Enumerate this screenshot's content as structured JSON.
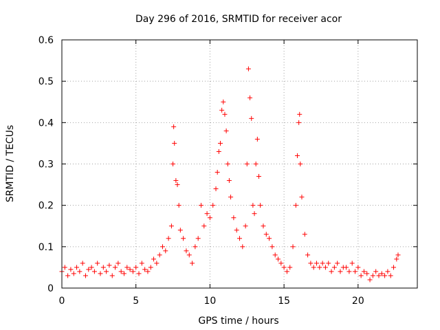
{
  "chart_data": {
    "type": "scatter",
    "title": "Day 296 of 2016, SRMTID for receiver acor",
    "xlabel": "GPS time / hours",
    "ylabel": "SRMTID / TECUs",
    "xlim": [
      0,
      24
    ],
    "ylim": [
      0,
      0.6
    ],
    "xticks": [
      "0",
      "5",
      "10",
      "15",
      "20"
    ],
    "yticks": [
      "0",
      "0.1",
      "0.2",
      "0.3",
      "0.4",
      "0.5",
      "0.6"
    ],
    "grid": true,
    "marker": "+",
    "marker_color": "#ff0000",
    "series": [
      {
        "name": "SRMTID",
        "points": [
          [
            0.0,
            0.04
          ],
          [
            0.2,
            0.05
          ],
          [
            0.4,
            0.03
          ],
          [
            0.6,
            0.045
          ],
          [
            0.8,
            0.035
          ],
          [
            1.0,
            0.05
          ],
          [
            1.2,
            0.04
          ],
          [
            1.4,
            0.06
          ],
          [
            1.6,
            0.03
          ],
          [
            1.8,
            0.045
          ],
          [
            2.0,
            0.05
          ],
          [
            2.2,
            0.04
          ],
          [
            2.4,
            0.06
          ],
          [
            2.6,
            0.035
          ],
          [
            2.8,
            0.05
          ],
          [
            3.0,
            0.04
          ],
          [
            3.2,
            0.055
          ],
          [
            3.4,
            0.03
          ],
          [
            3.6,
            0.05
          ],
          [
            3.8,
            0.06
          ],
          [
            4.0,
            0.04
          ],
          [
            4.2,
            0.035
          ],
          [
            4.4,
            0.05
          ],
          [
            4.6,
            0.045
          ],
          [
            4.8,
            0.04
          ],
          [
            5.0,
            0.05
          ],
          [
            5.2,
            0.035
          ],
          [
            5.4,
            0.06
          ],
          [
            5.6,
            0.045
          ],
          [
            5.8,
            0.04
          ],
          [
            6.0,
            0.05
          ],
          [
            6.2,
            0.07
          ],
          [
            6.4,
            0.06
          ],
          [
            6.6,
            0.08
          ],
          [
            6.8,
            0.1
          ],
          [
            7.0,
            0.09
          ],
          [
            7.2,
            0.12
          ],
          [
            7.4,
            0.15
          ],
          [
            7.5,
            0.3
          ],
          [
            7.55,
            0.39
          ],
          [
            7.6,
            0.35
          ],
          [
            7.7,
            0.26
          ],
          [
            7.8,
            0.25
          ],
          [
            7.9,
            0.2
          ],
          [
            8.0,
            0.14
          ],
          [
            8.2,
            0.12
          ],
          [
            8.4,
            0.09
          ],
          [
            8.6,
            0.08
          ],
          [
            8.8,
            0.06
          ],
          [
            9.0,
            0.1
          ],
          [
            9.2,
            0.12
          ],
          [
            9.4,
            0.2
          ],
          [
            9.6,
            0.15
          ],
          [
            9.8,
            0.18
          ],
          [
            10.0,
            0.17
          ],
          [
            10.2,
            0.2
          ],
          [
            10.4,
            0.24
          ],
          [
            10.5,
            0.28
          ],
          [
            10.6,
            0.33
          ],
          [
            10.7,
            0.35
          ],
          [
            10.8,
            0.43
          ],
          [
            10.9,
            0.45
          ],
          [
            11.0,
            0.42
          ],
          [
            11.1,
            0.38
          ],
          [
            11.2,
            0.3
          ],
          [
            11.3,
            0.26
          ],
          [
            11.4,
            0.22
          ],
          [
            11.6,
            0.17
          ],
          [
            11.8,
            0.14
          ],
          [
            12.0,
            0.12
          ],
          [
            12.2,
            0.1
          ],
          [
            12.4,
            0.15
          ],
          [
            12.5,
            0.3
          ],
          [
            12.6,
            0.53
          ],
          [
            12.7,
            0.46
          ],
          [
            12.8,
            0.41
          ],
          [
            12.9,
            0.2
          ],
          [
            13.0,
            0.18
          ],
          [
            13.1,
            0.3
          ],
          [
            13.2,
            0.36
          ],
          [
            13.3,
            0.27
          ],
          [
            13.4,
            0.2
          ],
          [
            13.6,
            0.15
          ],
          [
            13.8,
            0.13
          ],
          [
            14.0,
            0.12
          ],
          [
            14.2,
            0.1
          ],
          [
            14.4,
            0.08
          ],
          [
            14.6,
            0.07
          ],
          [
            14.8,
            0.06
          ],
          [
            15.0,
            0.05
          ],
          [
            15.2,
            0.04
          ],
          [
            15.4,
            0.05
          ],
          [
            15.6,
            0.1
          ],
          [
            15.8,
            0.2
          ],
          [
            15.9,
            0.32
          ],
          [
            16.0,
            0.4
          ],
          [
            16.05,
            0.42
          ],
          [
            16.1,
            0.3
          ],
          [
            16.2,
            0.22
          ],
          [
            16.4,
            0.13
          ],
          [
            16.6,
            0.08
          ],
          [
            16.8,
            0.06
          ],
          [
            17.0,
            0.05
          ],
          [
            17.2,
            0.06
          ],
          [
            17.4,
            0.05
          ],
          [
            17.6,
            0.06
          ],
          [
            17.8,
            0.05
          ],
          [
            18.0,
            0.06
          ],
          [
            18.2,
            0.04
          ],
          [
            18.4,
            0.05
          ],
          [
            18.6,
            0.06
          ],
          [
            18.8,
            0.04
          ],
          [
            19.0,
            0.05
          ],
          [
            19.2,
            0.05
          ],
          [
            19.4,
            0.04
          ],
          [
            19.6,
            0.06
          ],
          [
            19.8,
            0.04
          ],
          [
            20.0,
            0.05
          ],
          [
            20.2,
            0.03
          ],
          [
            20.4,
            0.04
          ],
          [
            20.6,
            0.035
          ],
          [
            20.8,
            0.02
          ],
          [
            21.0,
            0.03
          ],
          [
            21.2,
            0.04
          ],
          [
            21.4,
            0.03
          ],
          [
            21.6,
            0.035
          ],
          [
            21.8,
            0.03
          ],
          [
            22.0,
            0.04
          ],
          [
            22.2,
            0.03
          ],
          [
            22.4,
            0.05
          ],
          [
            22.6,
            0.07
          ],
          [
            22.7,
            0.08
          ]
        ]
      }
    ]
  }
}
